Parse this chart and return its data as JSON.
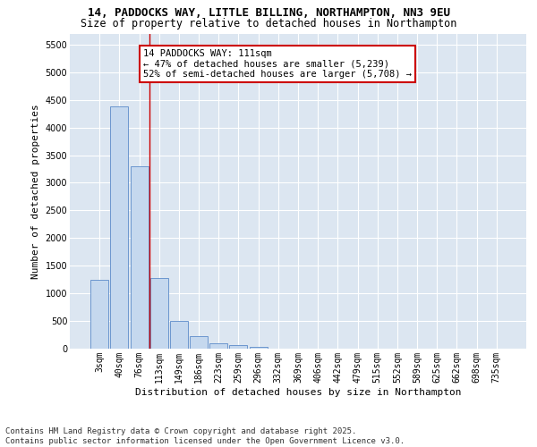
{
  "title_line1": "14, PADDOCKS WAY, LITTLE BILLING, NORTHAMPTON, NN3 9EU",
  "title_line2": "Size of property relative to detached houses in Northampton",
  "xlabel": "Distribution of detached houses by size in Northampton",
  "ylabel": "Number of detached properties",
  "bar_color": "#c5d8ee",
  "bar_edge_color": "#5b8bc9",
  "background_color": "#dce6f1",
  "grid_color": "#ffffff",
  "categories": [
    "3sqm",
    "40sqm",
    "76sqm",
    "113sqm",
    "149sqm",
    "186sqm",
    "223sqm",
    "259sqm",
    "296sqm",
    "332sqm",
    "369sqm",
    "406sqm",
    "442sqm",
    "479sqm",
    "515sqm",
    "552sqm",
    "589sqm",
    "625sqm",
    "662sqm",
    "698sqm",
    "735sqm"
  ],
  "values": [
    1250,
    4380,
    3300,
    1280,
    500,
    220,
    90,
    60,
    40,
    0,
    0,
    0,
    0,
    0,
    0,
    0,
    0,
    0,
    0,
    0,
    0
  ],
  "ylim_max": 5700,
  "yticks": [
    0,
    500,
    1000,
    1500,
    2000,
    2500,
    3000,
    3500,
    4000,
    4500,
    5000,
    5500
  ],
  "vline_x": 2.5,
  "annotation_text": "14 PADDOCKS WAY: 111sqm\n← 47% of detached houses are smaller (5,239)\n52% of semi-detached houses are larger (5,708) →",
  "annotation_box_color": "#ffffff",
  "annotation_box_edge": "#cc0000",
  "vline_color": "#cc0000",
  "footer_text": "Contains HM Land Registry data © Crown copyright and database right 2025.\nContains public sector information licensed under the Open Government Licence v3.0.",
  "title_fontsize": 9,
  "subtitle_fontsize": 8.5,
  "axis_label_fontsize": 8,
  "tick_fontsize": 7,
  "annotation_fontsize": 7.5,
  "footer_fontsize": 6.5
}
